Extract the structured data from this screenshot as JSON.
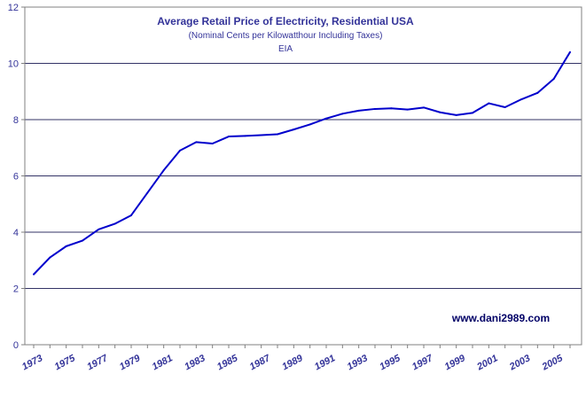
{
  "chart_data": {
    "type": "line",
    "title": "Average Retail Price of Electricity, Residential USA",
    "subtitle": "(Nominal Cents per Kilowatthour Including Taxes)",
    "source": "EIA",
    "watermark": "www.dani2989.com",
    "xlabel": "",
    "ylabel": "",
    "ylim": [
      0,
      12
    ],
    "yticks": [
      0,
      2,
      4,
      6,
      8,
      10,
      12
    ],
    "xlim": [
      1973,
      2006
    ],
    "xtick_labels": [
      "1973",
      "1975",
      "1977",
      "1979",
      "1981",
      "1983",
      "1985",
      "1987",
      "1989",
      "1991",
      "1993",
      "1995",
      "1997",
      "1999",
      "2001",
      "2003",
      "2005"
    ],
    "grid": "horizontal",
    "legend": "none",
    "colors": {
      "line": "#0000cc",
      "grid": "#333366",
      "title": "#333399",
      "watermark": "#000066",
      "axis_text": "#333399"
    },
    "series": [
      {
        "x": [
          1973,
          1974,
          1975,
          1976,
          1977,
          1978,
          1979,
          1980,
          1981,
          1982,
          1983,
          1984,
          1985,
          1986,
          1987,
          1988,
          1989,
          1990,
          1991,
          1992,
          1993,
          1994,
          1995,
          1996,
          1997,
          1998,
          1999,
          2000,
          2001,
          2002,
          2003,
          2004,
          2005,
          2006
        ],
        "values": [
          2.5,
          3.1,
          3.5,
          3.7,
          4.1,
          4.3,
          4.6,
          5.4,
          6.2,
          6.9,
          7.2,
          7.15,
          7.4,
          7.42,
          7.45,
          7.48,
          7.65,
          7.83,
          8.04,
          8.21,
          8.32,
          8.38,
          8.4,
          8.36,
          8.43,
          8.26,
          8.16,
          8.24,
          8.58,
          8.44,
          8.72,
          8.95,
          9.45,
          10.4
        ]
      }
    ]
  }
}
